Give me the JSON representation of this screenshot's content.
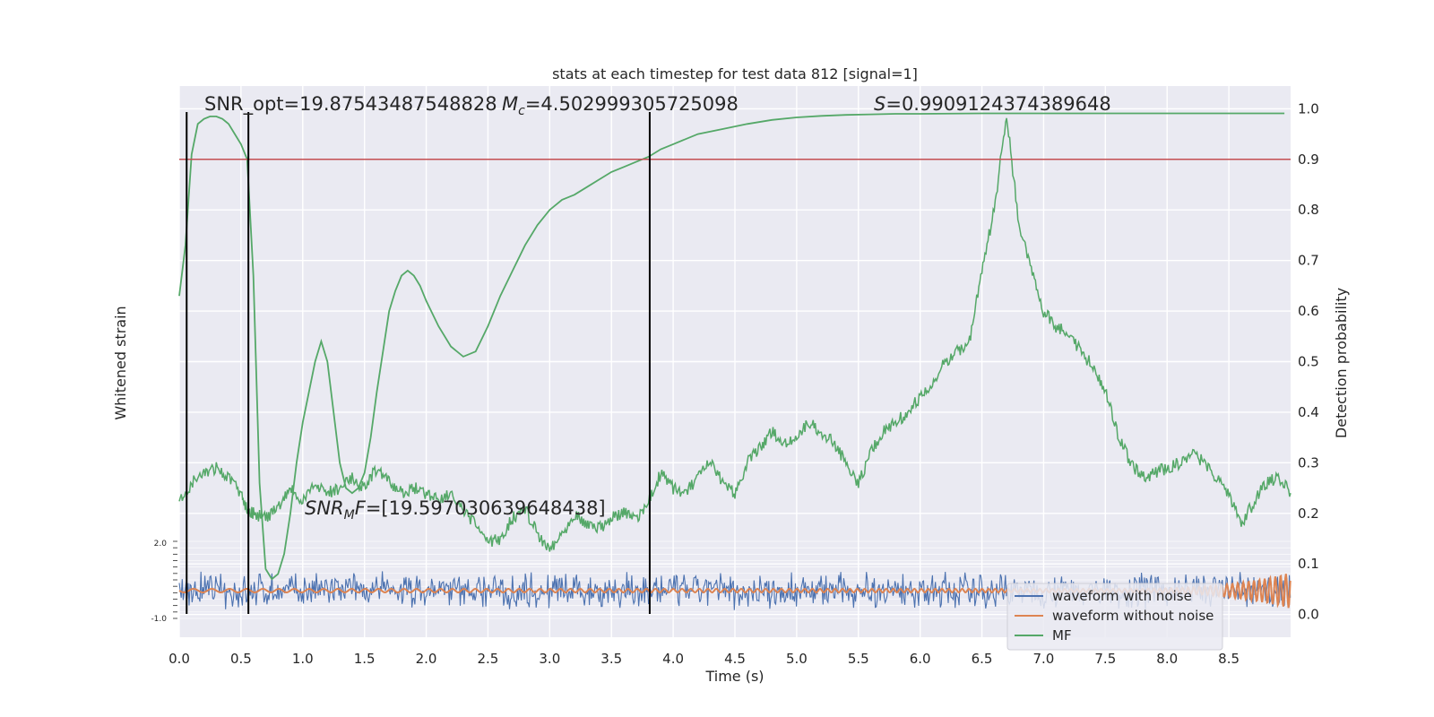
{
  "chart_data": {
    "type": "line",
    "title": "stats at each timestep for test data 812 [signal=1]",
    "xlabel": "Time (s)",
    "ylabel_left": "Whitened strain",
    "ylabel_right": "Detection probability",
    "xlim": [
      0.0,
      9.0
    ],
    "ylim_right": [
      -0.045,
      1.045
    ],
    "xticks": [
      "0.0",
      "0.5",
      "1.0",
      "1.5",
      "2.0",
      "2.5",
      "3.0",
      "3.5",
      "4.0",
      "4.5",
      "5.0",
      "5.5",
      "6.0",
      "6.5",
      "7.0",
      "7.5",
      "8.0",
      "8.5"
    ],
    "yticks_right": [
      "0.0",
      "0.1",
      "0.2",
      "0.3",
      "0.4",
      "0.5",
      "0.6",
      "0.7",
      "0.8",
      "0.9",
      "1.0"
    ],
    "inset_yticks_left": [
      "2.0",
      "-1.0"
    ],
    "threshold": 0.9,
    "vlines": [
      0.06,
      0.56,
      3.81
    ],
    "annotations": {
      "snr_opt": "SNR_opt=19.87543487548828",
      "mc": "=4.502999305725098",
      "s": "=0.9909124374389648",
      "snr_mf": "=[19.597030639648438]"
    },
    "legend_position": "lower-right",
    "grid": true,
    "series": [
      {
        "name": "waveform with noise",
        "color": "#4c72b0",
        "description_values": "whitened strain noise band, amplitude approx ±1",
        "x": [
          0.0,
          9.0
        ],
        "y": [
          0.0,
          0.0
        ]
      },
      {
        "name": "waveform without noise",
        "color": "#dd8452",
        "x": [
          0.0,
          8.0,
          8.5,
          8.8,
          8.95,
          9.0
        ],
        "y": [
          0.0,
          0.0,
          0.05,
          0.2,
          0.5,
          0.3
        ]
      },
      {
        "name": "MF",
        "color": "#55a868",
        "x": [
          0.0,
          0.1,
          0.2,
          0.3,
          0.4,
          0.5,
          0.55,
          0.6,
          0.7,
          0.8,
          0.9,
          1.0,
          1.1,
          1.2,
          1.3,
          1.4,
          1.5,
          1.6,
          1.7,
          1.8,
          1.9,
          2.0,
          2.1,
          2.2,
          2.3,
          2.4,
          2.5,
          2.6,
          2.7,
          2.8,
          2.9,
          3.0,
          3.1,
          3.2,
          3.3,
          3.4,
          3.5,
          3.6,
          3.7,
          3.8,
          3.9,
          4.0,
          4.1,
          4.2,
          4.3,
          4.4,
          4.5,
          4.6,
          4.7,
          4.8,
          4.9,
          5.0,
          5.1,
          5.2,
          5.3,
          5.4,
          5.5,
          5.6,
          5.7,
          5.8,
          5.9,
          6.0,
          6.1,
          6.2,
          6.3,
          6.4,
          6.5,
          6.6,
          6.7,
          6.8,
          6.9,
          7.0,
          7.1,
          7.2,
          7.3,
          7.4,
          7.5,
          7.6,
          7.7,
          7.8,
          7.9,
          8.0,
          8.1,
          8.2,
          8.3,
          8.4,
          8.5,
          8.6,
          8.7,
          8.8,
          8.9,
          9.0
        ],
        "y": [
          0.22,
          0.26,
          0.28,
          0.29,
          0.27,
          0.24,
          0.21,
          0.2,
          0.19,
          0.21,
          0.25,
          0.22,
          0.26,
          0.24,
          0.25,
          0.27,
          0.25,
          0.29,
          0.26,
          0.24,
          0.25,
          0.24,
          0.23,
          0.24,
          0.2,
          0.18,
          0.14,
          0.15,
          0.19,
          0.21,
          0.16,
          0.13,
          0.16,
          0.2,
          0.18,
          0.17,
          0.19,
          0.2,
          0.19,
          0.22,
          0.28,
          0.25,
          0.24,
          0.27,
          0.3,
          0.26,
          0.24,
          0.3,
          0.33,
          0.36,
          0.34,
          0.35,
          0.38,
          0.36,
          0.34,
          0.3,
          0.26,
          0.32,
          0.36,
          0.38,
          0.4,
          0.43,
          0.45,
          0.5,
          0.52,
          0.54,
          0.68,
          0.8,
          0.99,
          0.77,
          0.68,
          0.6,
          0.57,
          0.56,
          0.52,
          0.49,
          0.44,
          0.36,
          0.3,
          0.27,
          0.28,
          0.29,
          0.3,
          0.32,
          0.3,
          0.27,
          0.24,
          0.18,
          0.22,
          0.26,
          0.27,
          0.24
        ]
      },
      {
        "name": "detection probability",
        "color": "#55a868",
        "x": [
          0.0,
          0.05,
          0.1,
          0.15,
          0.2,
          0.25,
          0.3,
          0.35,
          0.4,
          0.45,
          0.5,
          0.55,
          0.6,
          0.65,
          0.7,
          0.75,
          0.8,
          0.85,
          0.9,
          0.95,
          1.0,
          1.05,
          1.1,
          1.15,
          1.2,
          1.25,
          1.3,
          1.35,
          1.4,
          1.45,
          1.5,
          1.55,
          1.6,
          1.65,
          1.7,
          1.75,
          1.8,
          1.85,
          1.9,
          1.95,
          2.0,
          2.1,
          2.2,
          2.3,
          2.4,
          2.5,
          2.6,
          2.7,
          2.8,
          2.9,
          3.0,
          3.1,
          3.2,
          3.3,
          3.4,
          3.5,
          3.6,
          3.7,
          3.8,
          3.9,
          4.0,
          4.2,
          4.4,
          4.6,
          4.8,
          5.0,
          5.2,
          5.4,
          5.6,
          5.8,
          6.0,
          6.5,
          7.0,
          7.5,
          8.0,
          8.5,
          8.95
        ],
        "y": [
          0.63,
          0.73,
          0.91,
          0.97,
          0.98,
          0.985,
          0.985,
          0.98,
          0.97,
          0.95,
          0.93,
          0.9,
          0.67,
          0.26,
          0.09,
          0.07,
          0.08,
          0.12,
          0.2,
          0.3,
          0.38,
          0.44,
          0.5,
          0.54,
          0.5,
          0.4,
          0.3,
          0.25,
          0.24,
          0.25,
          0.28,
          0.35,
          0.44,
          0.52,
          0.6,
          0.64,
          0.67,
          0.68,
          0.67,
          0.65,
          0.62,
          0.57,
          0.53,
          0.51,
          0.52,
          0.57,
          0.63,
          0.68,
          0.73,
          0.77,
          0.8,
          0.82,
          0.83,
          0.845,
          0.86,
          0.875,
          0.885,
          0.895,
          0.905,
          0.92,
          0.93,
          0.95,
          0.96,
          0.97,
          0.978,
          0.983,
          0.986,
          0.988,
          0.989,
          0.99,
          0.99,
          0.991,
          0.991,
          0.991,
          0.991,
          0.991,
          0.991
        ]
      }
    ]
  }
}
